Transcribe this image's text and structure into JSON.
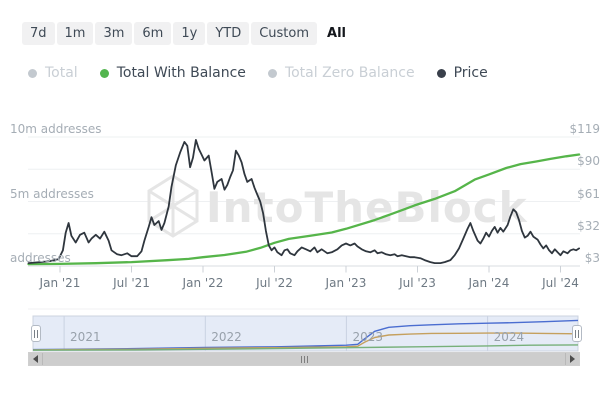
{
  "toolbar": {
    "ranges": [
      {
        "label": "7d",
        "selected": false
      },
      {
        "label": "1m",
        "selected": false
      },
      {
        "label": "3m",
        "selected": false
      },
      {
        "label": "6m",
        "selected": false
      },
      {
        "label": "1y",
        "selected": false
      },
      {
        "label": "YTD",
        "selected": false
      },
      {
        "label": "Custom",
        "selected": false
      },
      {
        "label": "All",
        "selected": true
      }
    ]
  },
  "legend": {
    "items": [
      {
        "label": "Total",
        "active": false,
        "dot_color": "#c3c9cf",
        "text_color": "#c9cfd5"
      },
      {
        "label": "Total With Balance",
        "active": true,
        "dot_color": "#53b54f",
        "text_color": "#3f4a56"
      },
      {
        "label": "Total Zero Balance",
        "active": false,
        "dot_color": "#c3c9cf",
        "text_color": "#c9cfd5"
      },
      {
        "label": "Price",
        "active": true,
        "dot_color": "#39404b",
        "text_color": "#3f4a56"
      }
    ]
  },
  "watermark": {
    "text": "IntoTheBlock",
    "logo": "cube-wireframe-icon"
  },
  "chart_data": {
    "type": "line",
    "x_axis": {
      "range_decimal_years": [
        2020.78,
        2024.64
      ],
      "ticks": [
        {
          "label": "Jan '21",
          "t": 2021.0
        },
        {
          "label": "Jul '21",
          "t": 2021.5
        },
        {
          "label": "Jan '22",
          "t": 2022.0
        },
        {
          "label": "Jul '22",
          "t": 2022.5
        },
        {
          "label": "Jan '23",
          "t": 2023.0
        },
        {
          "label": "Jul '23",
          "t": 2023.5
        },
        {
          "label": "Jan '24",
          "t": 2024.0
        },
        {
          "label": "Jul '24",
          "t": 2024.5
        }
      ]
    },
    "y_left": {
      "unit": "addresses (millions)",
      "labels": [
        {
          "text": "10m addresses",
          "value_millions": 10
        },
        {
          "text": "5m addresses",
          "value_millions": 5
        },
        {
          "text": "addresses",
          "value_millions": 0
        }
      ],
      "range_millions": [
        0,
        10
      ]
    },
    "y_right": {
      "unit": "USD",
      "labels": [
        "$119",
        "$90",
        "$61",
        "$32",
        "$3"
      ],
      "values": [
        119,
        90,
        61,
        32,
        3
      ],
      "grid": true
    },
    "series": [
      {
        "name": "Total With Balance",
        "color": "#56b54a",
        "unit": "millions of addresses",
        "points": [
          [
            2020.78,
            0.15
          ],
          [
            2021.0,
            0.16
          ],
          [
            2021.25,
            0.22
          ],
          [
            2021.5,
            0.3
          ],
          [
            2021.75,
            0.45
          ],
          [
            2021.9,
            0.55
          ],
          [
            2022.0,
            0.68
          ],
          [
            2022.15,
            0.85
          ],
          [
            2022.3,
            1.1
          ],
          [
            2022.4,
            1.4
          ],
          [
            2022.5,
            1.8
          ],
          [
            2022.6,
            2.1
          ],
          [
            2022.75,
            2.35
          ],
          [
            2022.9,
            2.6
          ],
          [
            2023.0,
            2.88
          ],
          [
            2023.2,
            3.56
          ],
          [
            2023.31,
            4.0
          ],
          [
            2023.41,
            4.4
          ],
          [
            2023.48,
            4.7
          ],
          [
            2023.62,
            5.2
          ],
          [
            2023.76,
            5.8
          ],
          [
            2023.9,
            6.7
          ],
          [
            2024.0,
            7.1
          ],
          [
            2024.12,
            7.6
          ],
          [
            2024.22,
            7.9
          ],
          [
            2024.33,
            8.1
          ],
          [
            2024.43,
            8.3
          ],
          [
            2024.54,
            8.5
          ],
          [
            2024.63,
            8.64
          ]
        ]
      },
      {
        "name": "Price",
        "color": "#2f363e",
        "unit": "USD",
        "points": [
          [
            2020.78,
            5.6
          ],
          [
            2020.86,
            6.5
          ],
          [
            2020.93,
            7.4
          ],
          [
            2020.99,
            9.2
          ],
          [
            2021.02,
            17.1
          ],
          [
            2021.04,
            32.9
          ],
          [
            2021.06,
            41.7
          ],
          [
            2021.08,
            30.2
          ],
          [
            2021.11,
            24.1
          ],
          [
            2021.14,
            31.1
          ],
          [
            2021.17,
            32.9
          ],
          [
            2021.2,
            24.1
          ],
          [
            2021.22,
            27.6
          ],
          [
            2021.25,
            31.1
          ],
          [
            2021.28,
            27.6
          ],
          [
            2021.31,
            33.8
          ],
          [
            2021.34,
            25.8
          ],
          [
            2021.36,
            17.1
          ],
          [
            2021.4,
            13.5
          ],
          [
            2021.43,
            12.7
          ],
          [
            2021.47,
            14.4
          ],
          [
            2021.5,
            11.8
          ],
          [
            2021.54,
            11.8
          ],
          [
            2021.57,
            16.2
          ],
          [
            2021.59,
            25.8
          ],
          [
            2021.62,
            38.2
          ],
          [
            2021.64,
            46.9
          ],
          [
            2021.66,
            39.9
          ],
          [
            2021.69,
            43.4
          ],
          [
            2021.71,
            35.5
          ],
          [
            2021.73,
            41.7
          ],
          [
            2021.76,
            56.6
          ],
          [
            2021.78,
            74.2
          ],
          [
            2021.81,
            93.5
          ],
          [
            2021.84,
            105.0
          ],
          [
            2021.87,
            114.6
          ],
          [
            2021.89,
            111.1
          ],
          [
            2021.91,
            91.8
          ],
          [
            2021.93,
            100.5
          ],
          [
            2021.95,
            116.4
          ],
          [
            2021.97,
            108.5
          ],
          [
            2021.99,
            103.2
          ],
          [
            2022.01,
            97.9
          ],
          [
            2022.04,
            102.3
          ],
          [
            2022.06,
            87.4
          ],
          [
            2022.08,
            72.4
          ],
          [
            2022.1,
            78.6
          ],
          [
            2022.13,
            81.2
          ],
          [
            2022.15,
            71.6
          ],
          [
            2022.17,
            75.9
          ],
          [
            2022.19,
            83.0
          ],
          [
            2022.21,
            89.1
          ],
          [
            2022.23,
            106.7
          ],
          [
            2022.25,
            102.3
          ],
          [
            2022.27,
            96.2
          ],
          [
            2022.29,
            85.6
          ],
          [
            2022.31,
            78.6
          ],
          [
            2022.34,
            81.2
          ],
          [
            2022.36,
            73.3
          ],
          [
            2022.38,
            67.2
          ],
          [
            2022.4,
            61.0
          ],
          [
            2022.42,
            50.5
          ],
          [
            2022.44,
            34.6
          ],
          [
            2022.46,
            21.5
          ],
          [
            2022.48,
            17.1
          ],
          [
            2022.5,
            19.7
          ],
          [
            2022.52,
            15.3
          ],
          [
            2022.55,
            12.7
          ],
          [
            2022.57,
            17.1
          ],
          [
            2022.59,
            18.0
          ],
          [
            2022.61,
            14.4
          ],
          [
            2022.64,
            12.7
          ],
          [
            2022.66,
            16.2
          ],
          [
            2022.69,
            19.7
          ],
          [
            2022.72,
            18.0
          ],
          [
            2022.75,
            16.2
          ],
          [
            2022.78,
            19.7
          ],
          [
            2022.8,
            15.3
          ],
          [
            2022.83,
            18.0
          ],
          [
            2022.87,
            14.4
          ],
          [
            2022.9,
            15.3
          ],
          [
            2022.94,
            18.0
          ],
          [
            2022.97,
            21.5
          ],
          [
            2023.0,
            23.2
          ],
          [
            2023.03,
            21.5
          ],
          [
            2023.06,
            23.2
          ],
          [
            2023.08,
            20.6
          ],
          [
            2023.11,
            18.0
          ],
          [
            2023.14,
            16.2
          ],
          [
            2023.17,
            15.3
          ],
          [
            2023.2,
            17.1
          ],
          [
            2023.22,
            14.4
          ],
          [
            2023.25,
            15.3
          ],
          [
            2023.28,
            13.5
          ],
          [
            2023.31,
            12.7
          ],
          [
            2023.34,
            13.5
          ],
          [
            2023.36,
            11.8
          ],
          [
            2023.39,
            12.7
          ],
          [
            2023.42,
            11.8
          ],
          [
            2023.45,
            10.9
          ],
          [
            2023.48,
            10.9
          ],
          [
            2023.52,
            10.0
          ],
          [
            2023.55,
            8.3
          ],
          [
            2023.59,
            6.5
          ],
          [
            2023.62,
            5.6
          ],
          [
            2023.66,
            5.6
          ],
          [
            2023.69,
            6.5
          ],
          [
            2023.73,
            8.3
          ],
          [
            2023.76,
            12.7
          ],
          [
            2023.79,
            18.8
          ],
          [
            2023.82,
            27.6
          ],
          [
            2023.85,
            36.4
          ],
          [
            2023.87,
            41.7
          ],
          [
            2023.89,
            34.6
          ],
          [
            2023.92,
            25.8
          ],
          [
            2023.94,
            23.2
          ],
          [
            2023.96,
            27.6
          ],
          [
            2023.98,
            32.9
          ],
          [
            2024.0,
            29.4
          ],
          [
            2024.02,
            34.6
          ],
          [
            2024.04,
            38.2
          ],
          [
            2024.06,
            32.9
          ],
          [
            2024.08,
            37.3
          ],
          [
            2024.1,
            33.8
          ],
          [
            2024.13,
            39.9
          ],
          [
            2024.15,
            47.8
          ],
          [
            2024.17,
            54.0
          ],
          [
            2024.19,
            51.3
          ],
          [
            2024.21,
            44.3
          ],
          [
            2024.23,
            34.6
          ],
          [
            2024.25,
            28.5
          ],
          [
            2024.27,
            30.2
          ],
          [
            2024.29,
            33.8
          ],
          [
            2024.31,
            29.4
          ],
          [
            2024.34,
            26.7
          ],
          [
            2024.36,
            22.3
          ],
          [
            2024.38,
            18.8
          ],
          [
            2024.4,
            21.5
          ],
          [
            2024.42,
            17.1
          ],
          [
            2024.44,
            14.4
          ],
          [
            2024.46,
            18.0
          ],
          [
            2024.48,
            15.3
          ],
          [
            2024.5,
            12.7
          ],
          [
            2024.52,
            16.2
          ],
          [
            2024.55,
            14.4
          ],
          [
            2024.57,
            17.1
          ],
          [
            2024.59,
            18.0
          ],
          [
            2024.61,
            17.1
          ],
          [
            2024.63,
            18.8
          ]
        ]
      }
    ],
    "navigator": {
      "years": [
        {
          "label": "2021",
          "t": 2021
        },
        {
          "label": "2022",
          "t": 2022
        },
        {
          "label": "2023",
          "t": 2023
        },
        {
          "label": "2024",
          "t": 2024
        }
      ],
      "selection": "all",
      "series": [
        {
          "name": "Total",
          "color": "#4a6dd0",
          "points_fraction": [
            [
              2020.78,
              0.03
            ],
            [
              2021.0,
              0.04
            ],
            [
              2021.5,
              0.06
            ],
            [
              2022.0,
              0.1
            ],
            [
              2022.5,
              0.12
            ],
            [
              2023.0,
              0.17
            ],
            [
              2023.08,
              0.2
            ],
            [
              2023.13,
              0.38
            ],
            [
              2023.2,
              0.62
            ],
            [
              2023.3,
              0.75
            ],
            [
              2023.45,
              0.8
            ],
            [
              2023.6,
              0.83
            ],
            [
              2023.8,
              0.86
            ],
            [
              2024.0,
              0.88
            ],
            [
              2024.2,
              0.9
            ],
            [
              2024.4,
              0.93
            ],
            [
              2024.64,
              0.97
            ]
          ]
        },
        {
          "name": "Total Zero Balance",
          "color": "#c5a05e",
          "points_fraction": [
            [
              2020.78,
              0.02
            ],
            [
              2021.0,
              0.03
            ],
            [
              2021.5,
              0.04
            ],
            [
              2022.0,
              0.07
            ],
            [
              2022.5,
              0.09
            ],
            [
              2023.0,
              0.12
            ],
            [
              2023.08,
              0.14
            ],
            [
              2023.13,
              0.27
            ],
            [
              2023.2,
              0.42
            ],
            [
              2023.3,
              0.5
            ],
            [
              2023.45,
              0.53
            ],
            [
              2023.6,
              0.55
            ],
            [
              2023.8,
              0.555
            ],
            [
              2024.0,
              0.56
            ],
            [
              2024.2,
              0.56
            ],
            [
              2024.4,
              0.55
            ],
            [
              2024.64,
              0.54
            ]
          ]
        },
        {
          "name": "Total With Balance",
          "color": "#77b07a",
          "points_fraction": [
            [
              2020.78,
              0.01
            ],
            [
              2021.5,
              0.02
            ],
            [
              2022.0,
              0.04
            ],
            [
              2022.5,
              0.06
            ],
            [
              2023.0,
              0.09
            ],
            [
              2023.5,
              0.12
            ],
            [
              2024.0,
              0.15
            ],
            [
              2024.3,
              0.17
            ],
            [
              2024.64,
              0.18
            ]
          ]
        }
      ]
    }
  },
  "scrollbar": {
    "left_icon": "scroll-left-arrow",
    "right_icon": "scroll-right-arrow",
    "grip_icon": "thumb-grip"
  }
}
